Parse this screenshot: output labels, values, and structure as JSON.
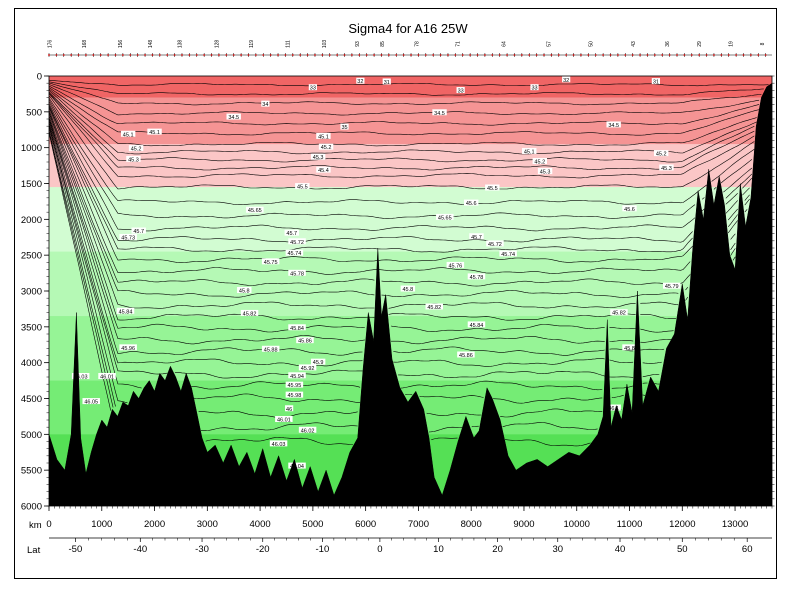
{
  "chart_data": {
    "type": "contour",
    "title": "Sigma4 for A16 25W",
    "xlabel": "km",
    "lat_label": "Lat",
    "x_ticks": [
      0,
      1000,
      2000,
      3000,
      4000,
      5000,
      6000,
      7000,
      8000,
      9000,
      10000,
      11000,
      12000,
      13000
    ],
    "lat_ticks": [
      {
        "label": "-50",
        "km": 500
      },
      {
        "label": "-40",
        "km": 1730
      },
      {
        "label": "-30",
        "km": 2900
      },
      {
        "label": "-20",
        "km": 4050
      },
      {
        "label": "-10",
        "km": 5180
      },
      {
        "label": "0",
        "km": 6270
      },
      {
        "label": "10",
        "km": 7380
      },
      {
        "label": "20",
        "km": 8500
      },
      {
        "label": "30",
        "km": 9640
      },
      {
        "label": "40",
        "km": 10820
      },
      {
        "label": "50",
        "km": 12000
      },
      {
        "label": "60",
        "km": 13230
      }
    ],
    "y_ticks": [
      0,
      500,
      1000,
      1500,
      2000,
      2500,
      3000,
      3500,
      4000,
      4500,
      5000,
      5500,
      6000
    ],
    "xlim": [
      0,
      13700
    ],
    "ylim": [
      0,
      6000
    ],
    "stations": [
      "176",
      "168",
      "156",
      "148",
      "138",
      "128",
      "119",
      "111",
      "103",
      "93",
      "85",
      "78",
      "71",
      "64",
      "57",
      "50",
      "43",
      "36",
      "29",
      "19",
      "8"
    ],
    "station_km": [
      50,
      700,
      1380,
      1950,
      2510,
      3210,
      3870,
      4560,
      5250,
      5870,
      6350,
      7000,
      7780,
      8650,
      9500,
      10300,
      11100,
      11750,
      12350,
      12950,
      13550
    ],
    "color_bands": [
      {
        "depth_top": 0,
        "color": "#f06565"
      },
      {
        "depth_top": 300,
        "color": "#f59494"
      },
      {
        "depth_top": 950,
        "color": "#fbc6c6"
      },
      {
        "depth_top": 1550,
        "color": "#d2fcd2"
      },
      {
        "depth_top": 2450,
        "color": "#b5f9b5"
      },
      {
        "depth_top": 3350,
        "color": "#96f496"
      },
      {
        "depth_top": 4250,
        "color": "#75ec75"
      },
      {
        "depth_top": 5000,
        "color": "#55e055"
      }
    ],
    "contour_depths": [
      120,
      250,
      380,
      520,
      660,
      800,
      950,
      1060,
      1170,
      1280,
      1390,
      1550,
      1760,
      1950,
      2120,
      2280,
      2420,
      2560,
      2720,
      2880,
      3040,
      3200,
      3360,
      3520,
      3680,
      3840,
      4000,
      4160,
      4320,
      4500,
      4700,
      4900,
      5100
    ],
    "contour_labels": [
      {
        "text": "32",
        "km": 5900,
        "depth": 80
      },
      {
        "text": "31",
        "km": 6400,
        "depth": 90
      },
      {
        "text": "32",
        "km": 9800,
        "depth": 60
      },
      {
        "text": "31",
        "km": 11500,
        "depth": 85
      },
      {
        "text": "33",
        "km": 5000,
        "depth": 170
      },
      {
        "text": "33",
        "km": 7800,
        "depth": 210
      },
      {
        "text": "33",
        "km": 9200,
        "depth": 170
      },
      {
        "text": "34",
        "km": 4100,
        "depth": 400
      },
      {
        "text": "34.5",
        "km": 3500,
        "depth": 580
      },
      {
        "text": "34.5",
        "km": 7400,
        "depth": 520
      },
      {
        "text": "34.5",
        "km": 10700,
        "depth": 690
      },
      {
        "text": "35",
        "km": 5600,
        "depth": 720
      },
      {
        "text": "45.1",
        "km": 1500,
        "depth": 820
      },
      {
        "text": "45.1",
        "km": 2000,
        "depth": 790
      },
      {
        "text": "45.1",
        "km": 5200,
        "depth": 850
      },
      {
        "text": "45.1",
        "km": 9100,
        "depth": 1060
      },
      {
        "text": "45.2",
        "km": 1650,
        "depth": 1020
      },
      {
        "text": "45.2",
        "km": 5250,
        "depth": 1000
      },
      {
        "text": "45.2",
        "km": 9300,
        "depth": 1200
      },
      {
        "text": "45.2",
        "km": 11600,
        "depth": 1090
      },
      {
        "text": "45.3",
        "km": 1600,
        "depth": 1170
      },
      {
        "text": "45.3",
        "km": 5100,
        "depth": 1140
      },
      {
        "text": "45.3",
        "km": 9400,
        "depth": 1340
      },
      {
        "text": "45.3",
        "km": 11700,
        "depth": 1290
      },
      {
        "text": "45.4",
        "km": 5200,
        "depth": 1320
      },
      {
        "text": "45.5",
        "km": 4800,
        "depth": 1550
      },
      {
        "text": "45.5",
        "km": 8400,
        "depth": 1570
      },
      {
        "text": "45.6",
        "km": 8000,
        "depth": 1780
      },
      {
        "text": "45.6",
        "km": 11000,
        "depth": 1860
      },
      {
        "text": "45.65",
        "km": 3900,
        "depth": 1880
      },
      {
        "text": "45.65",
        "km": 7500,
        "depth": 1980
      },
      {
        "text": "45.7",
        "km": 1700,
        "depth": 2170
      },
      {
        "text": "45.7",
        "km": 4600,
        "depth": 2200
      },
      {
        "text": "45.7",
        "km": 8100,
        "depth": 2250
      },
      {
        "text": "45.72",
        "km": 4700,
        "depth": 2320
      },
      {
        "text": "45.72",
        "km": 8450,
        "depth": 2350
      },
      {
        "text": "45.73",
        "km": 1500,
        "depth": 2260
      },
      {
        "text": "45.74",
        "km": 4650,
        "depth": 2480
      },
      {
        "text": "45.74",
        "km": 8700,
        "depth": 2490
      },
      {
        "text": "45.75",
        "km": 4200,
        "depth": 2600
      },
      {
        "text": "45.76",
        "km": 7700,
        "depth": 2650
      },
      {
        "text": "45.78",
        "km": 4700,
        "depth": 2760
      },
      {
        "text": "45.78",
        "km": 8100,
        "depth": 2810
      },
      {
        "text": "45.8",
        "km": 3700,
        "depth": 3000
      },
      {
        "text": "45.8",
        "km": 6800,
        "depth": 2980
      },
      {
        "text": "45.82",
        "km": 3800,
        "depth": 3320
      },
      {
        "text": "45.82",
        "km": 7300,
        "depth": 3230
      },
      {
        "text": "45.82",
        "km": 10800,
        "depth": 3310
      },
      {
        "text": "45.84",
        "km": 4700,
        "depth": 3520
      },
      {
        "text": "45.84",
        "km": 8100,
        "depth": 3480
      },
      {
        "text": "45.86",
        "km": 4850,
        "depth": 3700
      },
      {
        "text": "45.86",
        "km": 7900,
        "depth": 3900
      },
      {
        "text": "45.88",
        "km": 4200,
        "depth": 3820
      },
      {
        "text": "45.9",
        "km": 5100,
        "depth": 4000
      },
      {
        "text": "45.92",
        "km": 4900,
        "depth": 4080
      },
      {
        "text": "45.94",
        "km": 4700,
        "depth": 4190
      },
      {
        "text": "45.95",
        "km": 4650,
        "depth": 4320
      },
      {
        "text": "45.98",
        "km": 4650,
        "depth": 4460
      },
      {
        "text": "46",
        "km": 4550,
        "depth": 4650
      },
      {
        "text": "46.01",
        "km": 4450,
        "depth": 4800
      },
      {
        "text": "46.02",
        "km": 4900,
        "depth": 4950
      },
      {
        "text": "46.03",
        "km": 4350,
        "depth": 5140
      },
      {
        "text": "46.04",
        "km": 4700,
        "depth": 5450
      },
      {
        "text": "46.1",
        "km": 10700,
        "depth": 4640
      },
      {
        "text": "45.8",
        "km": 11000,
        "depth": 3800
      },
      {
        "text": "45.79",
        "km": 11800,
        "depth": 2940
      },
      {
        "text": "45.84",
        "km": 1450,
        "depth": 3290
      },
      {
        "text": "45.96",
        "km": 1500,
        "depth": 3800
      },
      {
        "text": "46.01",
        "km": 1100,
        "depth": 4200
      },
      {
        "text": "46.03",
        "km": 600,
        "depth": 4200
      },
      {
        "text": "46.05",
        "km": 800,
        "depth": 4550
      }
    ],
    "bathymetry": [
      [
        0,
        5000
      ],
      [
        150,
        5350
      ],
      [
        300,
        5500
      ],
      [
        420,
        5000
      ],
      [
        520,
        3300
      ],
      [
        600,
        5050
      ],
      [
        700,
        5550
      ],
      [
        800,
        5250
      ],
      [
        900,
        5000
      ],
      [
        1000,
        4800
      ],
      [
        1100,
        4900
      ],
      [
        1200,
        4650
      ],
      [
        1300,
        4750
      ],
      [
        1400,
        4550
      ],
      [
        1500,
        4600
      ],
      [
        1600,
        4400
      ],
      [
        1700,
        4500
      ],
      [
        1800,
        4350
      ],
      [
        1900,
        4250
      ],
      [
        2000,
        4400
      ],
      [
        2100,
        4150
      ],
      [
        2200,
        4250
      ],
      [
        2300,
        4050
      ],
      [
        2400,
        4200
      ],
      [
        2500,
        4400
      ],
      [
        2600,
        4150
      ],
      [
        2700,
        4350
      ],
      [
        2800,
        4700
      ],
      [
        2900,
        5050
      ],
      [
        3000,
        5250
      ],
      [
        3150,
        5150
      ],
      [
        3300,
        5400
      ],
      [
        3450,
        5150
      ],
      [
        3600,
        5450
      ],
      [
        3750,
        5250
      ],
      [
        3900,
        5550
      ],
      [
        4050,
        5200
      ],
      [
        4200,
        5600
      ],
      [
        4350,
        5300
      ],
      [
        4500,
        5650
      ],
      [
        4650,
        5350
      ],
      [
        4800,
        5750
      ],
      [
        4950,
        5450
      ],
      [
        5100,
        5800
      ],
      [
        5250,
        5500
      ],
      [
        5400,
        5850
      ],
      [
        5550,
        5600
      ],
      [
        5700,
        5250
      ],
      [
        5850,
        5050
      ],
      [
        5950,
        4100
      ],
      [
        6050,
        3300
      ],
      [
        6150,
        3700
      ],
      [
        6230,
        2400
      ],
      [
        6300,
        3350
      ],
      [
        6380,
        3050
      ],
      [
        6500,
        3950
      ],
      [
        6650,
        4350
      ],
      [
        6800,
        4550
      ],
      [
        6950,
        4400
      ],
      [
        7100,
        4650
      ],
      [
        7200,
        5050
      ],
      [
        7300,
        5600
      ],
      [
        7450,
        5850
      ],
      [
        7600,
        5500
      ],
      [
        7750,
        5100
      ],
      [
        7900,
        4750
      ],
      [
        8050,
        5050
      ],
      [
        8150,
        4950
      ],
      [
        8300,
        4350
      ],
      [
        8400,
        4500
      ],
      [
        8550,
        4800
      ],
      [
        8700,
        5300
      ],
      [
        8850,
        5500
      ],
      [
        9050,
        5400
      ],
      [
        9250,
        5350
      ],
      [
        9450,
        5450
      ],
      [
        9650,
        5350
      ],
      [
        9850,
        5250
      ],
      [
        10050,
        5300
      ],
      [
        10250,
        5150
      ],
      [
        10400,
        5000
      ],
      [
        10500,
        4750
      ],
      [
        10580,
        3400
      ],
      [
        10650,
        4900
      ],
      [
        10750,
        4600
      ],
      [
        10850,
        4800
      ],
      [
        10950,
        4300
      ],
      [
        11050,
        4700
      ],
      [
        11150,
        3000
      ],
      [
        11250,
        4600
      ],
      [
        11400,
        4200
      ],
      [
        11550,
        4400
      ],
      [
        11700,
        3800
      ],
      [
        11850,
        3600
      ],
      [
        12000,
        2900
      ],
      [
        12100,
        3400
      ],
      [
        12200,
        2400
      ],
      [
        12300,
        1600
      ],
      [
        12400,
        2000
      ],
      [
        12500,
        1300
      ],
      [
        12600,
        1800
      ],
      [
        12700,
        1400
      ],
      [
        12800,
        1800
      ],
      [
        12900,
        2500
      ],
      [
        13000,
        2700
      ],
      [
        13100,
        1500
      ],
      [
        13200,
        2100
      ],
      [
        13300,
        1700
      ],
      [
        13400,
        700
      ],
      [
        13500,
        300
      ],
      [
        13600,
        150
      ],
      [
        13700,
        100
      ]
    ]
  }
}
